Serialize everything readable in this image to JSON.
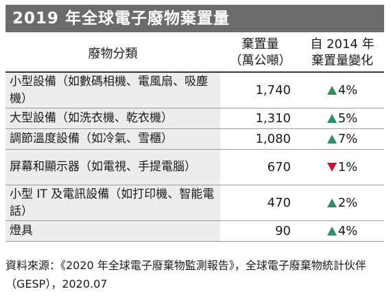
{
  "title": "2019 年全球電子廢物棄置量",
  "table": {
    "headers": {
      "category": "廢物分類",
      "amount_line1": "棄置量",
      "amount_line2": "（萬公噸）",
      "change_line1": "自 2014 年",
      "change_line2": "棄置量變化"
    },
    "rows": [
      {
        "category": "小型設備（如數碼相機、電風扇、吸塵機）",
        "amount": "1,740",
        "direction": "up",
        "change": "4%"
      },
      {
        "category": "大型設備（如洗衣機、乾衣機）",
        "amount": "1,310",
        "direction": "up",
        "change": "5%"
      },
      {
        "category": "調節溫度設備（如冷氣、雪櫃）",
        "amount": "1,080",
        "direction": "up",
        "change": "7%"
      },
      {
        "category": "屏幕和顯示器（如電視、手提電腦）",
        "amount": "670",
        "direction": "down",
        "change": "1%"
      },
      {
        "category": "小型 IT 及電訊設備（如打印機、智能電話）",
        "amount": "470",
        "direction": "up",
        "change": "2%"
      },
      {
        "category": "燈具",
        "amount": "90",
        "direction": "up",
        "change": "4%"
      }
    ]
  },
  "colors": {
    "up": "#2e8f62",
    "down": "#d0102e",
    "title_bg": "#6b6b6b",
    "category_bg": "#ececec"
  },
  "source": "資料來源：《2020 年全球電子廢棄物監測報告》，全球電子廢棄物統計伙伴（GESP），2020.07"
}
